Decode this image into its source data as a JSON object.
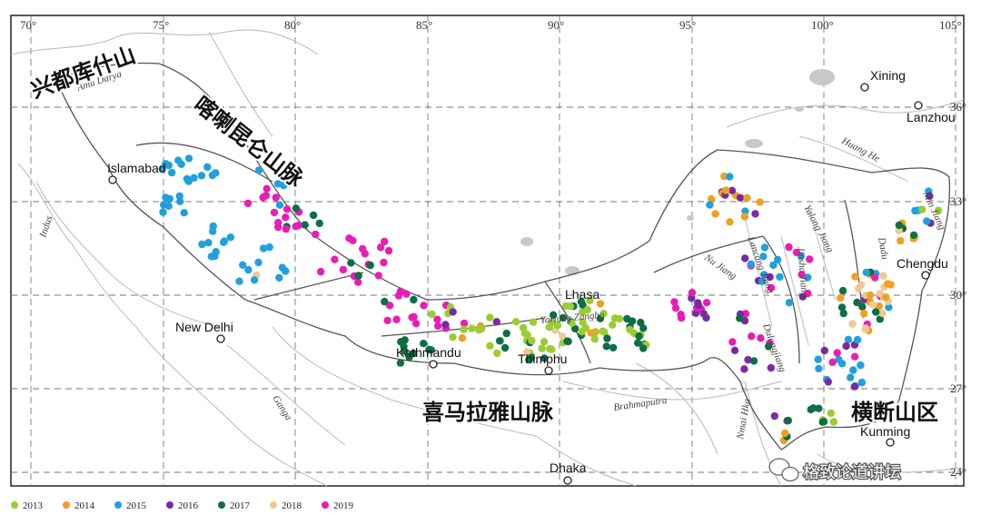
{
  "longitude_labels": [
    "70°",
    "75°",
    "80°",
    "85°",
    "90°",
    "95°",
    "100°",
    "105°"
  ],
  "latitude_labels": [
    "36°",
    "33°",
    "30°",
    "27°",
    "24°"
  ],
  "cities": {
    "xining": "Xining",
    "lanzhou": "Lanzhou",
    "islamabad": "Islamabad",
    "chengdu": "Chengdu",
    "lhasa": "Lhasa",
    "new_delhi": "New Delhi",
    "kathmandu": "Kathmandu",
    "thimphu": "Thimphu",
    "kunming": "Kunming",
    "dhaka": "Dhaka"
  },
  "rivers": {
    "amu_darya": "Amu Darya",
    "indus": "Indus",
    "ganga": "Ganga",
    "brahmaputra": "Brahmaputra",
    "huang_he": "Huang He",
    "nu_jiang": "Nu Jiang",
    "lancang_jiang": "Lancang Jiang",
    "yalong_jiang": "Yalong Jiang",
    "jinsha_jiang": "Jinsha Jiang",
    "min_jiang": "Min Jiang",
    "nmai_hka": "Nmai Hka",
    "dulong": "Dulongjiang",
    "dadu": "Dadu",
    "yarlung": "Yarlung Zangbo"
  },
  "ranges": {
    "hindu_kush": "兴都库什山",
    "karakoram_kunlun": "喀喇昆仑山脉",
    "himalaya": "喜马拉雅山脉",
    "hengduan": "横断山区"
  },
  "legend": [
    {
      "year": "2013",
      "color": "#9ACD32"
    },
    {
      "year": "2014",
      "color": "#F0A020"
    },
    {
      "year": "2015",
      "color": "#20A0DC"
    },
    {
      "year": "2016",
      "color": "#7B2AA6"
    },
    {
      "year": "2017",
      "color": "#0E6E46"
    },
    {
      "year": "2018",
      "color": "#F0C896"
    },
    {
      "year": "2019",
      "color": "#E81EB4"
    }
  ],
  "watermark": {
    "text": "格致论道讲坛"
  }
}
